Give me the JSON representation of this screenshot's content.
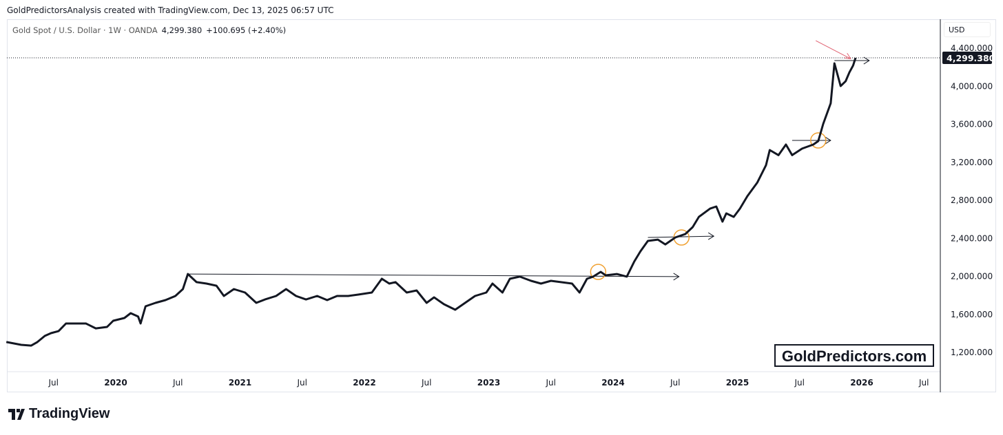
{
  "header": {
    "credit": "GoldPredictorsAnalysis created with TradingView.com, Dec 13, 2025 06:57 UTC",
    "symbol": "Gold Spot / U.S. Dollar · 1W · OANDA",
    "price": "4,299.380",
    "change": "+100.695 (+2.40%)",
    "currency": "USD"
  },
  "watermark": "GoldPredictors.com",
  "brand": "TradingView",
  "colors": {
    "line": "#131722",
    "circle": "#f0a030",
    "red_arrow": "#e06070"
  },
  "chart_data": {
    "type": "line",
    "title": "Gold Spot / U.S. Dollar · 1W · OANDA",
    "xlabel": "",
    "ylabel": "USD",
    "ylim": [
      1000,
      4560
    ],
    "xlim": [
      2019.1,
      2026.65
    ],
    "current_price_label": "4,299.380",
    "current_price": 4299.38,
    "y_ticks": [
      {
        "v": 1200,
        "label": "1,200.000"
      },
      {
        "v": 1600,
        "label": "1,600.000"
      },
      {
        "v": 2000,
        "label": "2,000.000"
      },
      {
        "v": 2400,
        "label": "2,400.000"
      },
      {
        "v": 2800,
        "label": "2,800.000"
      },
      {
        "v": 3200,
        "label": "3,200.000"
      },
      {
        "v": 3600,
        "label": "3,600.000"
      },
      {
        "v": 4000,
        "label": "4,000.000"
      },
      {
        "v": 4400,
        "label": "4,400.000"
      }
    ],
    "x_ticks": [
      {
        "t": 2019.5,
        "label": "Jul"
      },
      {
        "t": 2020,
        "label": "2020"
      },
      {
        "t": 2020.5,
        "label": "Jul"
      },
      {
        "t": 2021,
        "label": "2021"
      },
      {
        "t": 2021.5,
        "label": "Jul"
      },
      {
        "t": 2022,
        "label": "2022"
      },
      {
        "t": 2022.5,
        "label": "Jul"
      },
      {
        "t": 2023,
        "label": "2023"
      },
      {
        "t": 2023.5,
        "label": "Jul"
      },
      {
        "t": 2024,
        "label": "2024"
      },
      {
        "t": 2024.5,
        "label": "Jul"
      },
      {
        "t": 2025,
        "label": "2025"
      },
      {
        "t": 2025.5,
        "label": "Jul"
      },
      {
        "t": 2026,
        "label": "2026"
      },
      {
        "t": 2026.5,
        "label": "Jul"
      }
    ],
    "x": [
      2019.12,
      2019.24,
      2019.32,
      2019.37,
      2019.43,
      2019.48,
      2019.54,
      2019.6,
      2019.68,
      2019.76,
      2019.84,
      2019.93,
      2019.98,
      2020.07,
      2020.12,
      2020.18,
      2020.2,
      2020.24,
      2020.32,
      2020.4,
      2020.48,
      2020.54,
      2020.58,
      2020.65,
      2020.73,
      2020.81,
      2020.87,
      2020.95,
      2021.04,
      2021.13,
      2021.2,
      2021.29,
      2021.37,
      2021.45,
      2021.53,
      2021.62,
      2021.7,
      2021.78,
      2021.87,
      2021.95,
      2022.06,
      2022.14,
      2022.2,
      2022.25,
      2022.34,
      2022.42,
      2022.5,
      2022.56,
      2022.64,
      2022.73,
      2022.81,
      2022.89,
      2022.98,
      2023.03,
      2023.11,
      2023.17,
      2023.25,
      2023.34,
      2023.42,
      2023.5,
      2023.58,
      2023.67,
      2023.73,
      2023.79,
      2023.84,
      2023.9,
      2023.94,
      2024.03,
      2024.11,
      2024.17,
      2024.22,
      2024.28,
      2024.36,
      2024.42,
      2024.5,
      2024.58,
      2024.64,
      2024.69,
      2024.78,
      2024.83,
      2024.88,
      2024.91,
      2024.97,
      2025.02,
      2025.08,
      2025.16,
      2025.23,
      2025.26,
      2025.33,
      2025.39,
      2025.44,
      2025.52,
      2025.61,
      2025.65,
      2025.69,
      2025.75,
      2025.78,
      2025.83,
      2025.87,
      2025.9,
      2025.93,
      2025.95
    ],
    "y": [
      1309,
      1280,
      1272,
      1309,
      1374,
      1403,
      1424,
      1504,
      1504,
      1504,
      1453,
      1468,
      1533,
      1562,
      1613,
      1577,
      1504,
      1685,
      1721,
      1750,
      1794,
      1866,
      2025,
      1939,
      1924,
      1902,
      1794,
      1866,
      1830,
      1721,
      1757,
      1794,
      1866,
      1794,
      1757,
      1794,
      1750,
      1794,
      1794,
      1808,
      1830,
      1975,
      1924,
      1939,
      1830,
      1852,
      1721,
      1779,
      1707,
      1649,
      1721,
      1794,
      1830,
      1924,
      1830,
      1975,
      1997,
      1953,
      1924,
      1953,
      1939,
      1924,
      1830,
      1975,
      1997,
      2047,
      2011,
      2025,
      1997,
      2156,
      2264,
      2373,
      2387,
      2336,
      2409,
      2445,
      2518,
      2626,
      2713,
      2735,
      2576,
      2663,
      2626,
      2713,
      2844,
      2988,
      3170,
      3329,
      3275,
      3387,
      3275,
      3344,
      3387,
      3423,
      3604,
      3821,
      4241,
      4002,
      4052,
      4146,
      4218,
      4299
    ],
    "annotations": {
      "arrows": [
        {
          "from": [
            2020.58,
            2025
          ],
          "to": [
            2024.53,
            1997
          ]
        },
        {
          "from": [
            2024.28,
            2409
          ],
          "to": [
            2024.81,
            2423
          ]
        },
        {
          "from": [
            2025.44,
            3430
          ],
          "to": [
            2025.75,
            3430
          ]
        },
        {
          "from": [
            2025.78,
            4270
          ],
          "to": [
            2026.06,
            4270
          ]
        }
      ],
      "circles": [
        [
          2023.88,
          2047
        ],
        [
          2024.55,
          2409
        ],
        [
          2025.65,
          3430
        ]
      ],
      "red_arrow": {
        "from": [
          2025.63,
          4480
        ],
        "to": [
          2025.91,
          4290
        ]
      }
    }
  }
}
